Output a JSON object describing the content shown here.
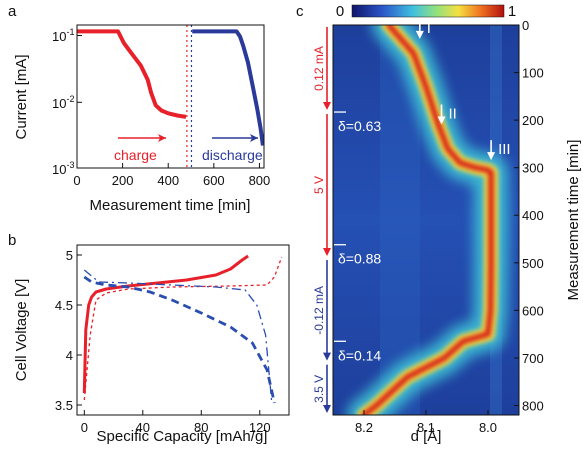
{
  "chart_data": [
    {
      "panel_label": "a",
      "type": "line",
      "xlabel": "Measurement time [min]",
      "ylabel": "Current [mA]",
      "xlim": [
        0,
        820
      ],
      "ylim": [
        0.001,
        0.15
      ],
      "yscale": "log",
      "xticks": [
        "0",
        "200",
        "400",
        "600",
        "800"
      ],
      "yticks": [
        "10",
        "10",
        "10"
      ],
      "ytick_exponents": [
        "-1",
        "-2",
        "-3"
      ],
      "annotations": [
        "charge",
        "discharge"
      ],
      "series": [
        {
          "color": "#e8202a",
          "x": [
            0,
            180,
            205,
            240,
            280,
            310,
            325,
            345,
            370,
            400,
            440,
            478
          ],
          "y": [
            0.12,
            0.12,
            0.08,
            0.055,
            0.036,
            0.022,
            0.014,
            0.009,
            0.0075,
            0.0068,
            0.0063,
            0.006
          ]
        },
        {
          "color": "#2a3a9a",
          "x": [
            505,
            520,
            700,
            715,
            730,
            750,
            770,
            790,
            805,
            815
          ],
          "y": [
            0.12,
            0.12,
            0.12,
            0.1,
            0.07,
            0.04,
            0.018,
            0.008,
            0.004,
            0.0022
          ]
        }
      ],
      "vlines": [
        {
          "x": 482,
          "color": "#e8202a",
          "style": "dotted"
        },
        {
          "x": 502,
          "color": "#2a3a9a",
          "style": "dotted"
        }
      ]
    },
    {
      "panel_label": "b",
      "type": "line",
      "xlabel": "Specific Capacity [mAh/g]",
      "ylabel": "Cell Voltage [V]",
      "xlim": [
        -5,
        140
      ],
      "ylim": [
        3.4,
        5.1
      ],
      "xticks": [
        "0",
        "40",
        "80",
        "120"
      ],
      "yticks": [
        "3.5",
        "4",
        "4.5",
        "5"
      ],
      "series": [
        {
          "color": "#e8202a",
          "style": "solid",
          "x": [
            0,
            1,
            3,
            5,
            8,
            15,
            30,
            50,
            70,
            90,
            100,
            108,
            112
          ],
          "y": [
            3.62,
            4.25,
            4.5,
            4.58,
            4.63,
            4.66,
            4.69,
            4.72,
            4.75,
            4.8,
            4.86,
            4.95,
            4.99
          ]
        },
        {
          "color": "#e8202a",
          "style": "dashed",
          "x": [
            0,
            4,
            8,
            15,
            30,
            60,
            100,
            125,
            130,
            135
          ],
          "y": [
            3.55,
            4.2,
            4.55,
            4.62,
            4.66,
            4.68,
            4.69,
            4.7,
            4.78,
            4.98
          ]
        },
        {
          "color": "#2a4db0",
          "style": "dashed",
          "x": [
            0,
            5,
            15,
            30,
            45,
            60,
            80,
            100,
            115,
            125,
            130
          ],
          "y": [
            4.78,
            4.73,
            4.7,
            4.68,
            4.63,
            4.55,
            4.42,
            4.28,
            4.12,
            3.85,
            3.52
          ]
        },
        {
          "color": "#2a4db0",
          "style": "dashdot",
          "x": [
            0,
            10,
            30,
            60,
            90,
            110,
            118,
            124,
            128
          ],
          "y": [
            4.85,
            4.73,
            4.72,
            4.7,
            4.68,
            4.65,
            4.5,
            4.2,
            3.55
          ]
        }
      ]
    },
    {
      "panel_label": "c",
      "type": "heatmap",
      "xlabel": "d [Å]",
      "ylabel": "Measurement time [min]",
      "xlim": [
        8.25,
        7.95
      ],
      "ylim": [
        820,
        0
      ],
      "xticks": [
        "8.2",
        "8.1",
        "8.0"
      ],
      "yticks": [
        "0",
        "100",
        "200",
        "300",
        "400",
        "500",
        "600",
        "700",
        "800"
      ],
      "colorbar": {
        "min": "0",
        "max": "1"
      },
      "peak_trace": {
        "t": [
          0,
          60,
          130,
          210,
          260,
          290,
          300,
          305,
          310,
          400,
          500,
          600,
          650,
          665,
          700,
          740,
          800,
          820
        ],
        "d": [
          8.16,
          8.12,
          8.1,
          8.08,
          8.065,
          8.045,
          8.02,
          8.0,
          7.995,
          7.995,
          7.995,
          7.996,
          8.0,
          8.04,
          8.07,
          8.13,
          8.18,
          8.2
        ]
      },
      "arrows": [
        {
          "label": "I",
          "t": 25,
          "d": 8.11
        },
        {
          "label": "II",
          "t": 205,
          "d": 8.075
        },
        {
          "label": "III",
          "t": 280,
          "d": 7.995
        }
      ],
      "delta_labels": [
        {
          "text": "δ=0.63",
          "t": 183
        },
        {
          "text": "δ=0.88",
          "t": 462
        },
        {
          "text": "δ=0.14",
          "t": 665
        }
      ],
      "segments": [
        {
          "text": "0.12 mA",
          "t_from": 0,
          "t_to": 183,
          "color": "#e8202a"
        },
        {
          "text": "5 V",
          "t_from": 183,
          "t_to": 490,
          "color": "#e8202a"
        },
        {
          "text": "-0.12 mA",
          "t_from": 490,
          "t_to": 710,
          "color": "#2a3a9a"
        },
        {
          "text": "3.5 V",
          "t_from": 710,
          "t_to": 820,
          "color": "#2a3a9a"
        }
      ]
    }
  ]
}
